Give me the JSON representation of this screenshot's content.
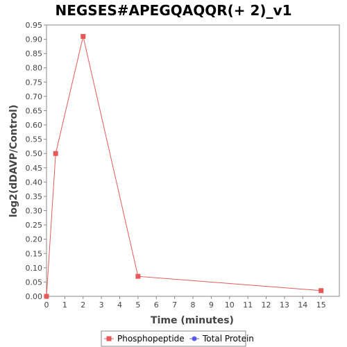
{
  "chart_data": {
    "type": "line",
    "title": "NEGSES#APEGQAQQR(+ 2)_v1",
    "xlabel": "Time (minutes)",
    "ylabel": "log2(dDAVP/Control)",
    "xlim": [
      0,
      16
    ],
    "ylim": [
      0,
      0.95
    ],
    "xticks": [
      0,
      1,
      2,
      3,
      4,
      5,
      6,
      7,
      8,
      9,
      10,
      11,
      12,
      13,
      14,
      15
    ],
    "yticks": [
      0.0,
      0.05,
      0.1,
      0.15,
      0.2,
      0.25,
      0.3,
      0.35,
      0.4,
      0.45,
      0.5,
      0.55,
      0.6,
      0.65,
      0.7,
      0.75,
      0.8,
      0.85,
      0.9,
      0.95
    ],
    "grid": false,
    "legend_position": "bottom",
    "series": [
      {
        "name": "Phosphopeptide",
        "color": "#e85858",
        "marker": "square",
        "x": [
          0,
          0.5,
          2,
          5,
          15
        ],
        "y": [
          0.0,
          0.5,
          0.91,
          0.07,
          0.02
        ]
      },
      {
        "name": "Total Protein",
        "color": "#5a5aee",
        "marker": "circle",
        "x": [],
        "y": []
      }
    ]
  }
}
